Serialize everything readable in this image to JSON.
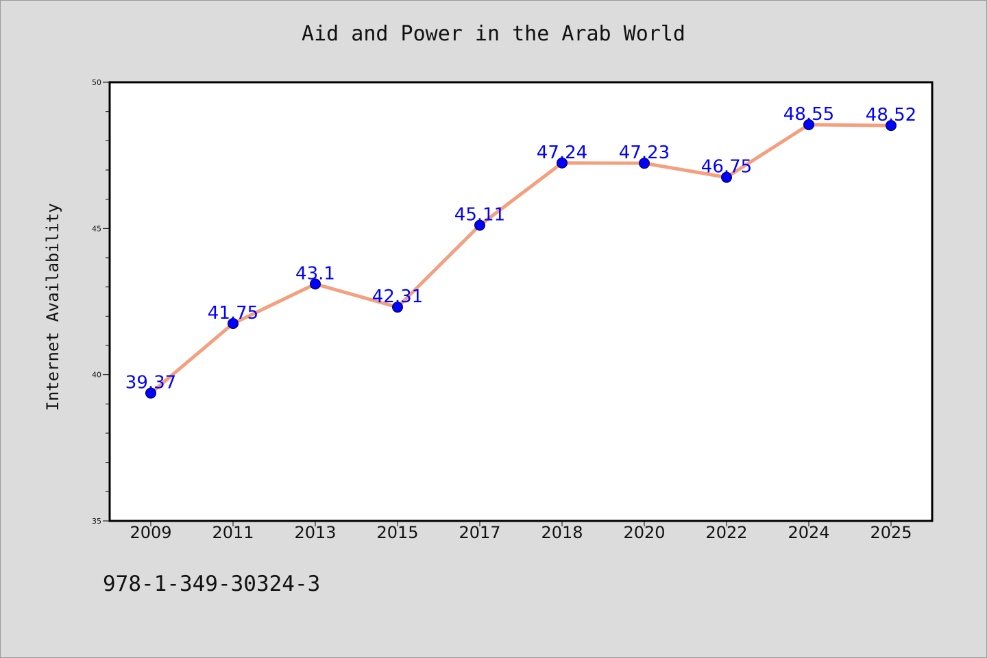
{
  "chart_data": {
    "type": "line",
    "title": "Aid and Power in the Arab World",
    "xlabel": "",
    "ylabel": "Internet Availability",
    "categories": [
      "2009",
      "2011",
      "2013",
      "2015",
      "2017",
      "2018",
      "2020",
      "2022",
      "2024",
      "2025"
    ],
    "series": [
      {
        "values": [
          39.37,
          41.75,
          43.1,
          42.31,
          45.11,
          47.24,
          47.23,
          46.75,
          48.55,
          48.52
        ],
        "labels": [
          "39.37",
          "41.75",
          "43.1",
          "42.31",
          "45.11",
          "47.24",
          "47.23",
          "46.75",
          "48.55",
          "48.52"
        ]
      }
    ],
    "ylim": [
      35,
      50
    ],
    "yticks": [
      "35",
      "40",
      "45",
      "50"
    ],
    "grid": false,
    "legend": "none",
    "colors": {
      "line": "#f4a07e",
      "marker": "#0000ff",
      "labels": "#0000ff",
      "background": "#dcdcdc",
      "plot": "#ffffff"
    }
  },
  "footer": {
    "id": "978-1-349-30324-3"
  }
}
